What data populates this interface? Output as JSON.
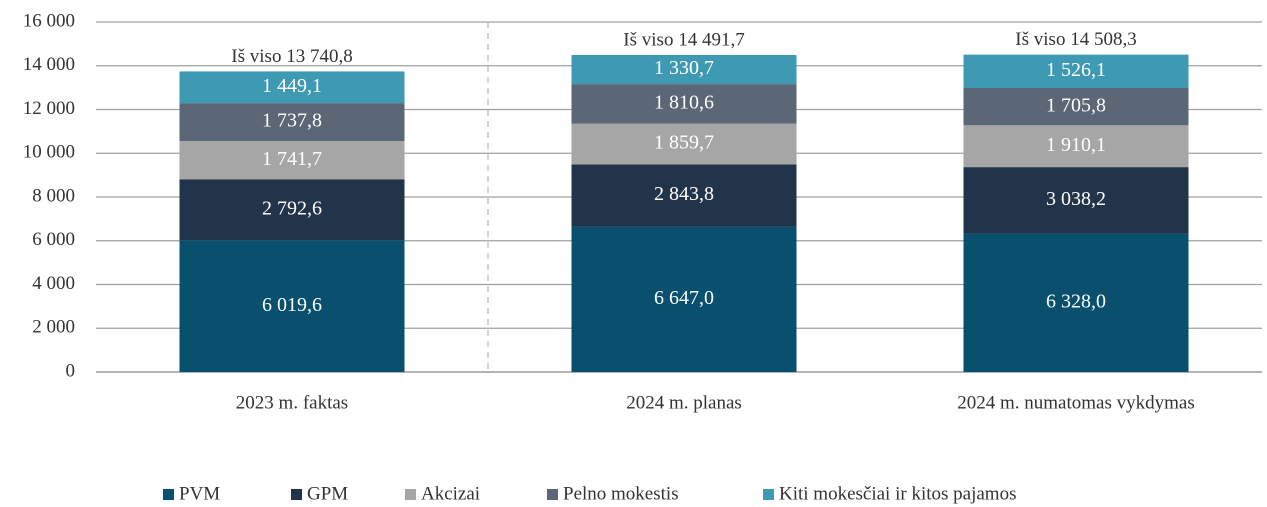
{
  "chart_data": {
    "type": "stacked_bar",
    "categories": [
      "2023 m. faktas",
      "2024 m. planas",
      "2024 m. numatomas vykdymas"
    ],
    "series": [
      {
        "name": "PVM",
        "color": "#08506e",
        "values": [
          6019.6,
          6647.0,
          6328.0
        ],
        "value_labels": [
          "6 019,6",
          "6 647,0",
          "6 328,0"
        ]
      },
      {
        "name": "GPM",
        "color": "#22344a",
        "values": [
          2792.6,
          2843.8,
          3038.2
        ],
        "value_labels": [
          "2 792,6",
          "2 843,8",
          "3 038,2"
        ]
      },
      {
        "name": "Akcizai",
        "color": "#a6a6a6",
        "values": [
          1741.7,
          1859.7,
          1910.1
        ],
        "value_labels": [
          "1 741,7",
          "1 859,7",
          "1 910,1"
        ]
      },
      {
        "name": "Pelno mokestis",
        "color": "#5b6676",
        "values": [
          1737.8,
          1810.6,
          1705.8
        ],
        "value_labels": [
          "1 737,8",
          "1 810,6",
          "1 705,8"
        ]
      },
      {
        "name": "Kiti mokesčiai ir kitos pajamos",
        "color": "#3e9ab3",
        "values": [
          1449.1,
          1330.7,
          1526.1
        ],
        "value_labels": [
          "1 449,1",
          "1 330,7",
          "1 526,1"
        ]
      }
    ],
    "annotations": [
      "Iš viso 13 740,8",
      "Iš viso 14 491,7",
      "Iš viso 14 508,3"
    ],
    "ylim": [
      0,
      16000
    ],
    "yticks": [
      0,
      {
        "value": 2000,
        "label": "2 000"
      },
      {
        "value": 4000,
        "label": "4 000"
      },
      {
        "value": 6000,
        "label": "6 000"
      },
      {
        "value": 8000,
        "label": "8 000"
      },
      {
        "value": 10000,
        "label": "10 000"
      },
      {
        "value": 12000,
        "label": "12 000"
      },
      {
        "value": 14000,
        "label": "14 000"
      },
      {
        "value": 16000,
        "label": "16 000"
      }
    ],
    "grid": true,
    "legend": "bottom"
  }
}
